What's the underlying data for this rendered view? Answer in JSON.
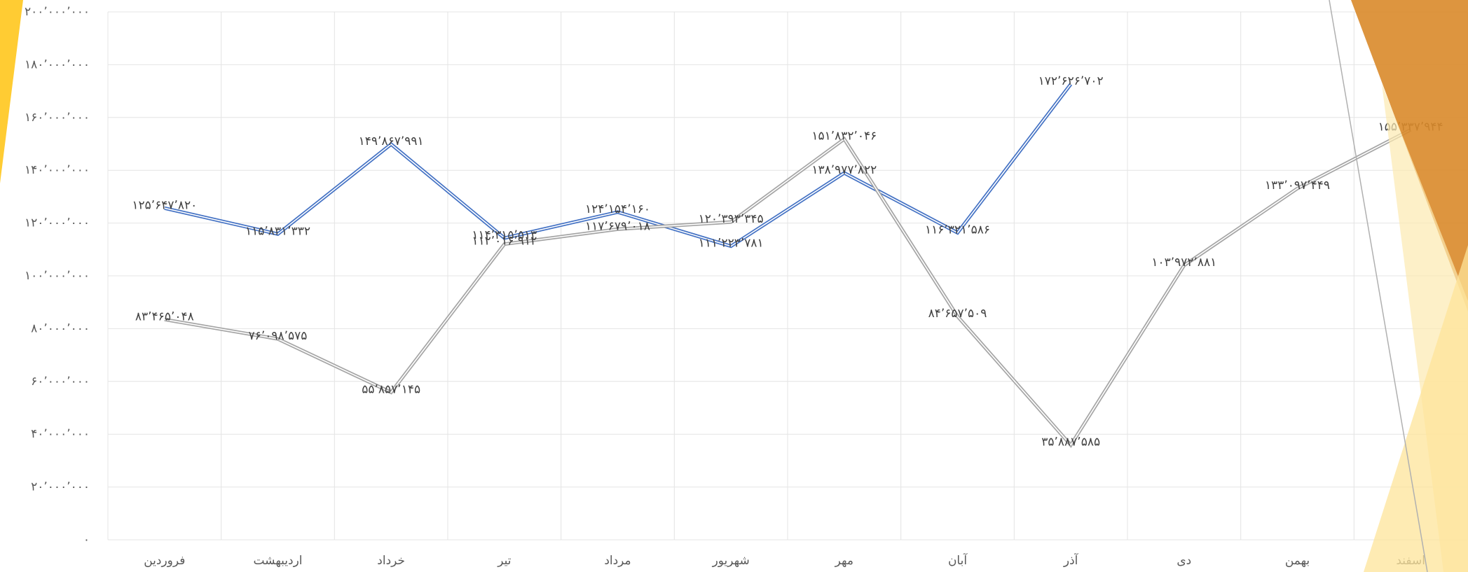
{
  "chart_data": {
    "type": "line",
    "categories": [
      "فروردین",
      "اردیبهشت",
      "خرداد",
      "تیر",
      "مرداد",
      "شهریور",
      "مهر",
      "آبان",
      "آذر",
      "دی",
      "بهمن",
      "اسفند"
    ],
    "series": [
      {
        "color": "#4472c4",
        "values": [
          125647820,
          115831332,
          149867991,
          114315513,
          124154160,
          111223781,
          138977822,
          116321586,
          172626702,
          null,
          null,
          null
        ],
        "value_labels": [
          "۱۲۵٬۶۴۷٬۸۲۰",
          "۱۱۵٬۸۳۱٬۳۳۲",
          "۱۴۹٬۸۶۷٬۹۹۱",
          "۱۱۴٬۳۱۵٬۵۱۳",
          "۱۲۴٬۱۵۴٬۱۶۰",
          "۱۱۱٬۲۲۳٬۷۸۱",
          "۱۳۸٬۹۷۷٬۸۲۲",
          "۱۱۶٬۳۲۱٬۵۸۶",
          "۱۷۲٬۶۲۶٬۷۰۲",
          null,
          null,
          null
        ]
      },
      {
        "color": "#a5a5a5",
        "values": [
          83465048,
          76098575,
          55857145,
          112016912,
          117679018,
          120393345,
          151832046,
          84657509,
          35887585,
          103972881,
          133097449,
          155337944
        ],
        "value_labels": [
          "۸۳٬۴۶۵٬۰۴۸",
          "۷۶٬۰۹۸٬۵۷۵",
          "۵۵٬۸۵۷٬۱۴۵",
          "۱۱۲٬۰۱۶٬۹۱۲",
          "۱۱۷٬۶۷۹٬۰۱۸",
          "۱۲۰٬۳۹۳٬۳۴۵",
          "۱۵۱٬۸۳۲٬۰۴۶",
          "۸۴٬۶۵۷٬۵۰۹",
          "۳۵٬۸۸۷٬۵۸۵",
          "۱۰۳٬۹۷۲٬۸۸۱",
          "۱۳۳٬۰۹۷٬۴۴۹",
          "۱۵۵٬۳۳۷٬۹۴۴"
        ]
      }
    ],
    "ylim": [
      0,
      200000000
    ],
    "yticks": [
      {
        "value": 0,
        "label": "۰"
      },
      {
        "value": 20000000,
        "label": "۲۰٬۰۰۰٬۰۰۰"
      },
      {
        "value": 40000000,
        "label": "۴۰٬۰۰۰٬۰۰۰"
      },
      {
        "value": 60000000,
        "label": "۶۰٬۰۰۰٬۰۰۰"
      },
      {
        "value": 80000000,
        "label": "۸۰٬۰۰۰٬۰۰۰"
      },
      {
        "value": 100000000,
        "label": "۱۰۰٬۰۰۰٬۰۰۰"
      },
      {
        "value": 120000000,
        "label": "۱۲۰٬۰۰۰٬۰۰۰"
      },
      {
        "value": 140000000,
        "label": "۱۴۰٬۰۰۰٬۰۰۰"
      },
      {
        "value": 160000000,
        "label": "۱۶۰٬۰۰۰٬۰۰۰"
      },
      {
        "value": 180000000,
        "label": "۱۸۰٬۰۰۰٬۰۰۰"
      },
      {
        "value": 200000000,
        "label": "۲۰۰٬۰۰۰٬۰۰۰"
      }
    ],
    "grid": true
  }
}
